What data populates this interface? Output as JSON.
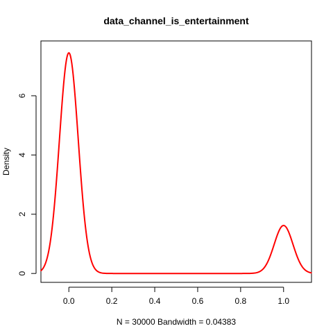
{
  "chart_data": {
    "type": "line",
    "title": "data_channel_is_entertainment",
    "xlabel": "N = 30000   Bandwidth = 0.04383",
    "ylabel": "Density",
    "xlim": [
      -0.13,
      1.13
    ],
    "ylim": [
      -0.3,
      7.85
    ],
    "x_ticks": [
      0.0,
      0.2,
      0.4,
      0.6,
      0.8,
      1.0
    ],
    "x_tick_labels": [
      "0.0",
      "0.2",
      "0.4",
      "0.6",
      "0.8",
      "1.0"
    ],
    "y_ticks": [
      0,
      2,
      4,
      6
    ],
    "y_tick_labels": [
      "0",
      "2",
      "4",
      "6"
    ],
    "grid": false,
    "series": [
      {
        "color": "#ff0000",
        "peaks": [
          {
            "center": 0.0,
            "height": 7.45,
            "sd": 0.04383
          },
          {
            "center": 1.0,
            "height": 1.62,
            "sd": 0.04383
          }
        ],
        "x_range": [
          -0.1315,
          1.1315
        ]
      }
    ]
  }
}
